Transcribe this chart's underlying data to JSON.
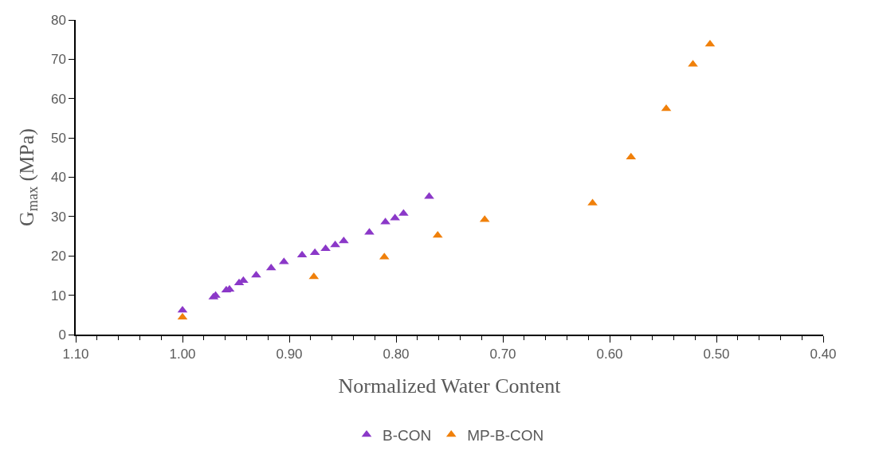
{
  "chart_data": {
    "type": "scatter",
    "xlabel": "Normalized Water Content",
    "ylabel": "G$_{max}$ (MPa)",
    "xlim": [
      1.1,
      0.4
    ],
    "xticks": [
      {
        "value": 1.1,
        "label": "1.10"
      },
      {
        "value": 1.0,
        "label": "1.00"
      },
      {
        "value": 0.9,
        "label": "0.90"
      },
      {
        "value": 0.8,
        "label": "0.80"
      },
      {
        "value": 0.7,
        "label": "0.70"
      },
      {
        "value": 0.6,
        "label": "0.60"
      },
      {
        "value": 0.5,
        "label": "0.50"
      },
      {
        "value": 0.4,
        "label": "0.40"
      }
    ],
    "ylim": [
      0,
      80
    ],
    "yticks": [
      0,
      10,
      20,
      30,
      40,
      50,
      60,
      70,
      80
    ],
    "marker": "triangle",
    "legend": "bottom",
    "series": [
      {
        "name": "B-CON",
        "color": "#8b38c8",
        "x": [
          1.0,
          0.971,
          0.969,
          0.959,
          0.956,
          0.947,
          0.943,
          0.931,
          0.917,
          0.905,
          0.888,
          0.876,
          0.866,
          0.857,
          0.849,
          0.825,
          0.81,
          0.801,
          0.793,
          0.769
        ],
        "values": [
          6.2,
          9.5,
          9.9,
          11.3,
          11.5,
          13.1,
          13.7,
          15.1,
          16.9,
          18.5,
          20.2,
          20.8,
          21.8,
          22.8,
          23.8,
          26.0,
          28.6,
          29.6,
          30.8,
          35.1
        ]
      },
      {
        "name": "MP-B-CON",
        "color": "#f0800a",
        "x": [
          1.0,
          0.877,
          0.811,
          0.761,
          0.717,
          0.616,
          0.58,
          0.547,
          0.522,
          0.506
        ],
        "values": [
          4.4,
          14.7,
          19.7,
          25.2,
          29.2,
          33.4,
          45.1,
          57.4,
          68.7,
          73.8
        ]
      }
    ]
  }
}
